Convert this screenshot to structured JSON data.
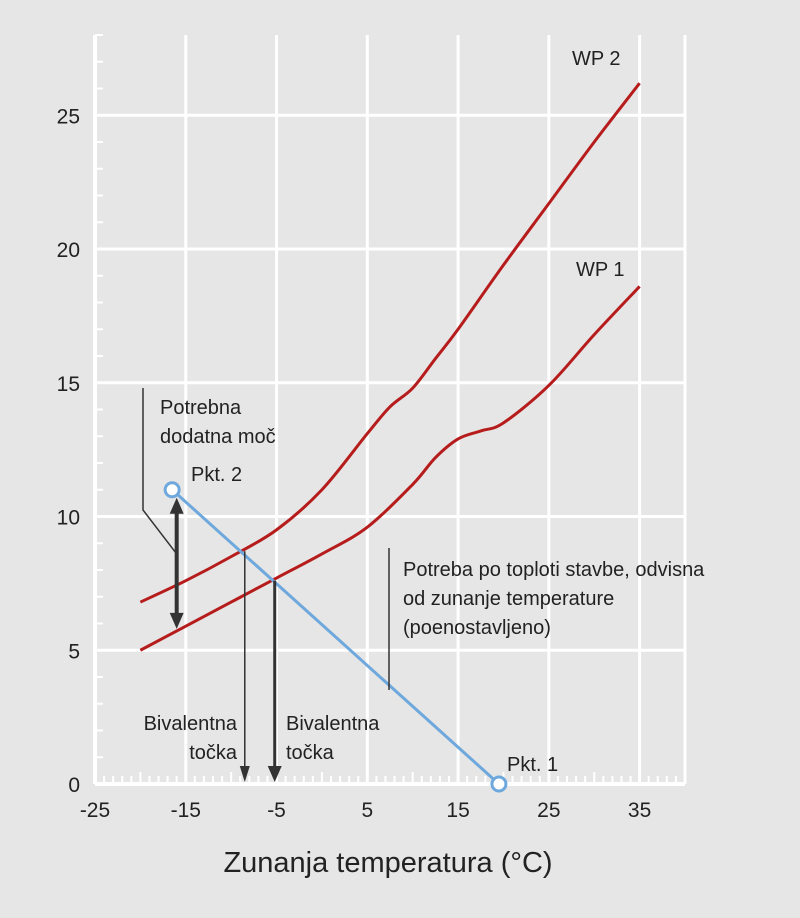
{
  "chart_data": {
    "type": "line",
    "title": "",
    "xlabel": "Zunanja temperatura (°C)",
    "ylabel": "",
    "xlim": [
      -25,
      40
    ],
    "ylim": [
      0,
      28
    ],
    "x_ticks": [
      -25,
      -15,
      -5,
      5,
      15,
      25,
      35
    ],
    "x_tick_labels": [
      "-25",
      "-15",
      "-5",
      "5",
      "15",
      "25",
      "35"
    ],
    "y_ticks": [
      0,
      5,
      10,
      15,
      20,
      25
    ],
    "y_tick_labels": [
      "0",
      "5",
      "10",
      "15",
      "20",
      "25"
    ],
    "grid": true,
    "series": [
      {
        "name": "WP 2",
        "color": "#b71c1c",
        "x": [
          -20,
          -15,
          -10,
          -5,
          0,
          5,
          7.5,
          10,
          12.5,
          15,
          20,
          25,
          30,
          35
        ],
        "y": [
          6.8,
          7.6,
          8.5,
          9.5,
          11.0,
          13.1,
          14.1,
          14.8,
          15.9,
          17.0,
          19.4,
          21.7,
          24.0,
          26.2
        ]
      },
      {
        "name": "WP 1",
        "color": "#b71c1c",
        "x": [
          -20,
          -15,
          -10,
          -5,
          0,
          5,
          10,
          12.5,
          15,
          17.5,
          20,
          25,
          30,
          35
        ],
        "y": [
          5.0,
          5.9,
          6.8,
          7.7,
          8.6,
          9.6,
          11.2,
          12.2,
          12.9,
          13.2,
          13.5,
          14.9,
          16.8,
          18.6
        ]
      },
      {
        "name": "Potreba po toploti stavbe",
        "color": "#6fa8dc",
        "x": [
          -16.5,
          19.5
        ],
        "y": [
          11.0,
          0.0
        ]
      }
    ],
    "points": [
      {
        "name": "Pkt. 2",
        "x": -16.5,
        "y": 11.0
      },
      {
        "name": "Pkt. 1",
        "x": 19.5,
        "y": 0.0
      }
    ],
    "bivalent_points": [
      {
        "label_line1": "Bivalentna",
        "label_line2": "točka",
        "x": -8.5,
        "y": 8.7
      },
      {
        "label_line1": "Bivalentna",
        "label_line2": "točka",
        "x": -5.2,
        "y": 7.6
      }
    ],
    "additional_power": {
      "label_line1": "Potrebna",
      "label_line2": "dodatna moč",
      "x": -16,
      "y_from": 5.8,
      "y_to": 10.7
    },
    "demand_annotation": {
      "line1": "Potreba po toploti stavbe, odvisna",
      "line2": "od zunanje temperature",
      "line3": "(poenostavljeno)"
    },
    "colors": {
      "background": "#e6e6e6",
      "grid": "#ffffff",
      "heat_pump": "#b71c1c",
      "demand": "#6fa8dc",
      "text": "#222222",
      "annotation": "#333333"
    }
  }
}
